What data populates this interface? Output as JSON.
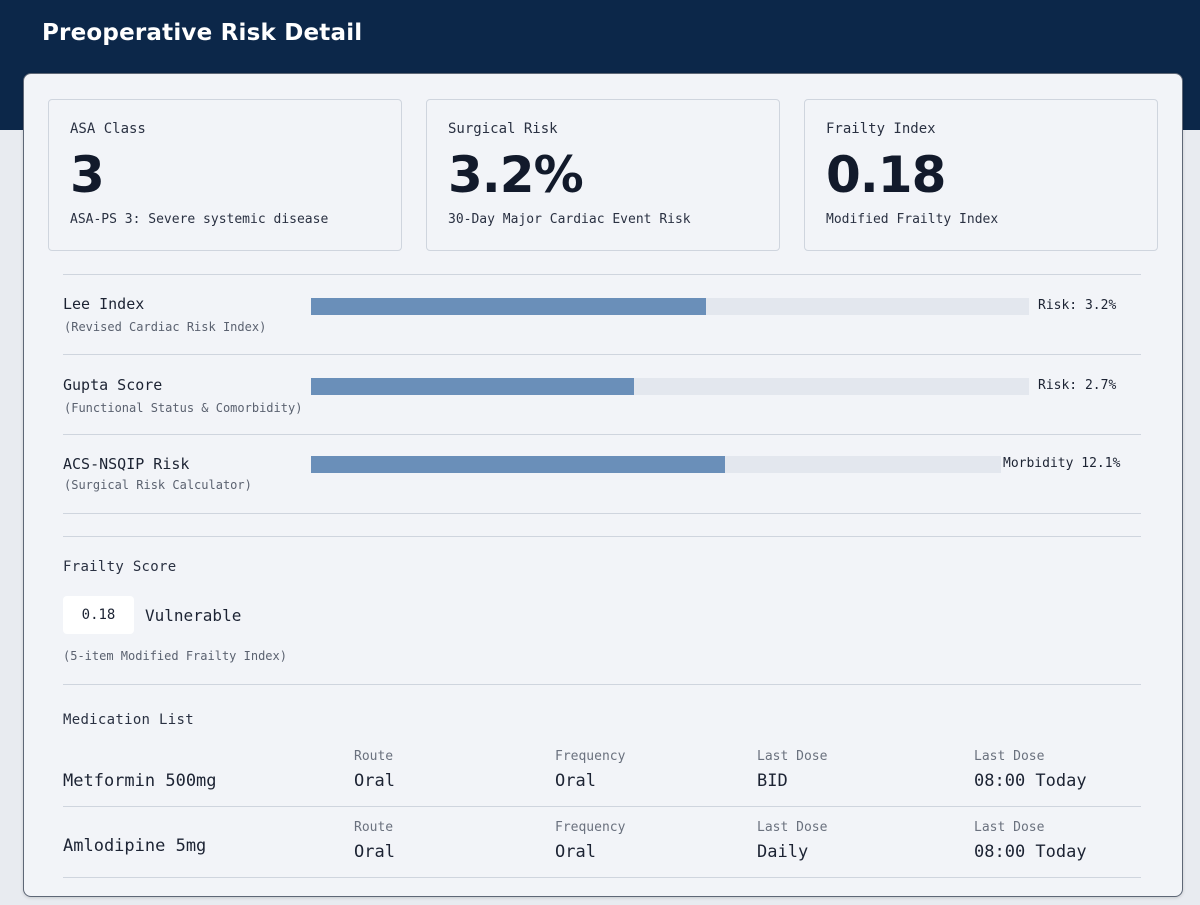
{
  "header": {
    "title": "Preoperative Risk Detail"
  },
  "cards": [
    {
      "label": "ASA Class",
      "value": "3",
      "sub": "ASA-PS 3: Severe systemic disease"
    },
    {
      "label": "Surgical Risk",
      "value": "3.2%",
      "sub": "30-Day Major Cardiac Event Risk"
    },
    {
      "label": "Frailty Index",
      "value": "0.18",
      "sub": "Modified Frailty Index"
    }
  ],
  "scores": [
    {
      "name": "Lee Index",
      "desc": "(Revised Cardiac Risk Index)",
      "risk": "Risk: 3.2%",
      "fill_fraction": 0.55
    },
    {
      "name": "Gupta Score",
      "desc": "(Functional Status & Comorbidity)",
      "risk": "Risk: 2.7%",
      "fill_fraction": 0.45
    },
    {
      "name": "ACS-NSQIP Risk",
      "desc": "(Surgical Risk Calculator)",
      "risk": "Morbidity 12.1%",
      "fill_fraction": 0.6
    }
  ],
  "frailty": {
    "title": "Frailty Score",
    "value": "0.18",
    "label": "Vulnerable",
    "note": "(5-item Modified Frailty Index)"
  },
  "medications": {
    "title": "Medication List",
    "rows": [
      {
        "name": "Metformin 500mg",
        "cols": [
          {
            "header": "Route",
            "value": "Oral"
          },
          {
            "header": "Frequency",
            "value": "Oral"
          },
          {
            "header": "Last Dose",
            "value": "BID"
          },
          {
            "header": "Last Dose",
            "value": "08:00 Today"
          }
        ]
      },
      {
        "name": "Amlodipine 5mg",
        "cols": [
          {
            "header": "Route",
            "value": "Oral"
          },
          {
            "header": "Frequency",
            "value": "Oral"
          },
          {
            "header": "Last Dose",
            "value": "Daily"
          },
          {
            "header": "Last Dose",
            "value": "08:00 Today"
          }
        ]
      }
    ]
  },
  "colors": {
    "header_bg": "#0c2749",
    "bar_fill": "#6a8fb9",
    "bar_track": "#e3e7ee"
  }
}
